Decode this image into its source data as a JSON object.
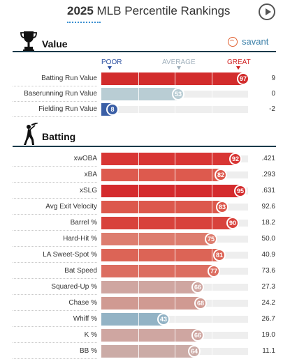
{
  "header": {
    "year": "2025",
    "title_rest": " MLB Percentile Rankings"
  },
  "value_section": {
    "title": "Value",
    "brand": "savant",
    "scale": {
      "poor": "POOR",
      "average": "AVERAGE",
      "great": "GREAT"
    },
    "rows": [
      {
        "label": "Batting Run Value",
        "percentile": 97,
        "value": "9",
        "color": "#d22c2c"
      },
      {
        "label": "Baserunning Run Value",
        "percentile": 53,
        "value": "0",
        "color": "#b9cdd4"
      },
      {
        "label": "Fielding Run Value",
        "percentile": 8,
        "value": "-2",
        "color": "#3b5fa6"
      }
    ]
  },
  "batting_section": {
    "title": "Batting",
    "rows": [
      {
        "label": "xwOBA",
        "percentile": 92,
        "value": ".421",
        "color": "#d83634"
      },
      {
        "label": "xBA",
        "percentile": 82,
        "value": ".293",
        "color": "#dd5a4e"
      },
      {
        "label": "xSLG",
        "percentile": 95,
        "value": ".631",
        "color": "#d42b2d"
      },
      {
        "label": "Avg Exit Velocity",
        "percentile": 83,
        "value": "92.6",
        "color": "#dc584c"
      },
      {
        "label": "Barrel %",
        "percentile": 90,
        "value": "18.2",
        "color": "#d8423c"
      },
      {
        "label": "Hard-Hit %",
        "percentile": 75,
        "value": "50.0",
        "color": "#dd7d6f"
      },
      {
        "label": "LA Sweet-Spot %",
        "percentile": 81,
        "value": "40.9",
        "color": "#dc6456"
      },
      {
        "label": "Bat Speed",
        "percentile": 77,
        "value": "73.6",
        "color": "#dc6e61"
      },
      {
        "label": "Squared-Up %",
        "percentile": 66,
        "value": "27.3",
        "color": "#cfa6a1"
      },
      {
        "label": "Chase %",
        "percentile": 68,
        "value": "24.2",
        "color": "#d09a92"
      },
      {
        "label": "Whiff %",
        "percentile": 43,
        "value": "26.7",
        "color": "#93b3c5"
      },
      {
        "label": "K %",
        "percentile": 66,
        "value": "19.0",
        "color": "#cfa6a1"
      },
      {
        "label": "BB %",
        "percentile": 64,
        "value": "11.1",
        "color": "#cbaba6"
      }
    ]
  }
}
